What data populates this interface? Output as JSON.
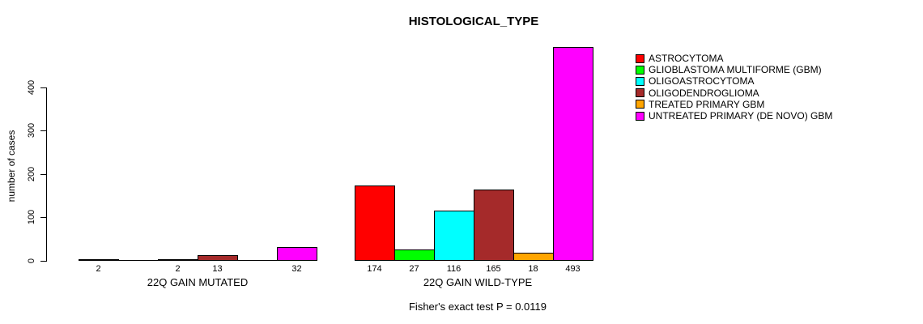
{
  "chart_data": {
    "type": "bar",
    "title": "HISTOLOGICAL_TYPE",
    "ylabel": "number of cases",
    "yticks": [
      0,
      100,
      200,
      300,
      400
    ],
    "ylim": [
      0,
      493
    ],
    "grid": false,
    "legend_position": "top-right",
    "background_color": "#FFFFFF",
    "categories": [
      {
        "name": "ASTROCYTOMA",
        "color": "#FF0000"
      },
      {
        "name": "GLIOBLASTOMA MULTIFORME (GBM)",
        "color": "#00FF00"
      },
      {
        "name": "OLIGOASTROCYTOMA",
        "color": "#00FFFF"
      },
      {
        "name": "OLIGODENDROGLIOMA",
        "color": "#A52A2A"
      },
      {
        "name": "TREATED PRIMARY GBM",
        "color": "#FFA500"
      },
      {
        "name": "UNTREATED PRIMARY (DE NOVO) GBM",
        "color": "#FF00FF"
      }
    ],
    "groups": [
      {
        "label": "22Q GAIN MUTATED",
        "values": [
          2,
          0,
          2,
          13,
          0,
          32
        ],
        "value_labels": [
          "2",
          "",
          "2",
          "13",
          "",
          "32"
        ]
      },
      {
        "label": "22Q GAIN WILD-TYPE",
        "values": [
          174,
          27,
          116,
          165,
          18,
          493
        ],
        "value_labels": [
          "174",
          "27",
          "116",
          "165",
          "18",
          "493"
        ]
      }
    ],
    "annotation": "Fisher's exact test P = 0.0119"
  }
}
